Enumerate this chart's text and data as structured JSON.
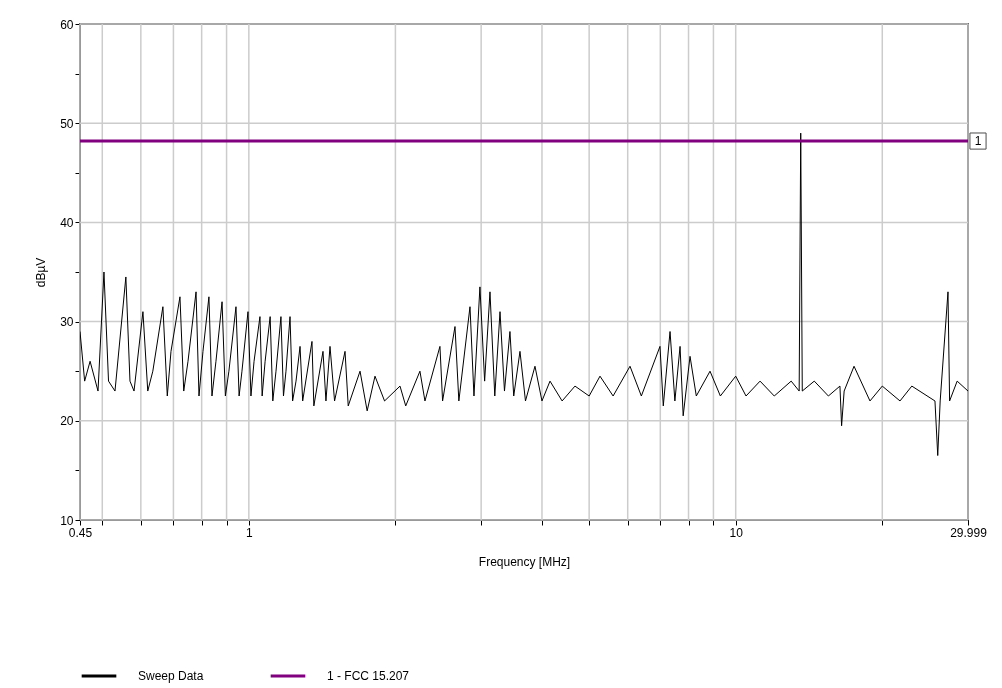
{
  "chart_data": {
    "type": "line",
    "xlabel": "Frequency [MHz]",
    "ylabel": "dBµV",
    "log": "x",
    "grid": true,
    "legend": "bottom",
    "xlim": [
      0.45,
      29.999
    ],
    "xticks": [
      0.45,
      {
        "value": 0.5,
        "label": null
      },
      {
        "value": 0.6,
        "label": null
      },
      {
        "value": 0.7,
        "label": null
      },
      {
        "value": 0.8,
        "label": null
      },
      {
        "value": 0.9,
        "label": null
      },
      1,
      {
        "value": 2,
        "label": null
      },
      {
        "value": 3,
        "label": null
      },
      {
        "value": 4,
        "label": null
      },
      {
        "value": 5,
        "label": null
      },
      {
        "value": 6,
        "label": null
      },
      {
        "value": 7,
        "label": null
      },
      {
        "value": 8,
        "label": null
      },
      {
        "value": 9,
        "label": null
      },
      10,
      {
        "value": 20,
        "label": null
      },
      29.999
    ],
    "ylim": [
      10,
      60
    ],
    "yticks": [
      10,
      {
        "value": 15,
        "label": null
      },
      20,
      {
        "value": 25,
        "label": null
      },
      30,
      {
        "value": 35,
        "label": null
      },
      40,
      {
        "value": 45,
        "label": null
      },
      50,
      {
        "value": 55,
        "label": null
      },
      60
    ],
    "series": [
      {
        "name": "Sweep Data",
        "color": "#000000",
        "x": [
          0.45,
          0.46,
          0.472,
          0.49,
          0.504,
          0.515,
          0.531,
          0.559,
          0.57,
          0.581,
          0.606,
          0.62,
          0.635,
          0.666,
          0.68,
          0.692,
          0.722,
          0.735,
          0.75,
          0.779,
          0.79,
          0.805,
          0.828,
          0.84,
          0.856,
          0.881,
          0.895,
          0.91,
          0.941,
          0.955,
          0.968,
          0.996,
          1.01,
          1.025,
          1.054,
          1.065,
          1.08,
          1.106,
          1.12,
          1.137,
          1.164,
          1.178,
          1.192,
          1.215,
          1.23,
          1.25,
          1.274,
          1.29,
          1.348,
          1.36,
          1.42,
          1.44,
          1.468,
          1.5,
          1.576,
          1.6,
          1.692,
          1.75,
          1.816,
          1.9,
          2.044,
          2.1,
          2.246,
          2.3,
          2.469,
          2.5,
          2.651,
          2.7,
          2.846,
          2.9,
          2.983,
          3.05,
          3.128,
          3.2,
          3.28,
          3.35,
          3.438,
          3.5,
          3.605,
          3.7,
          3.87,
          4.0,
          4.155,
          4.4,
          4.676,
          5.0,
          5.263,
          5.6,
          6.066,
          6.4,
          6.99,
          7.1,
          7.33,
          7.5,
          7.686,
          7.8,
          8.057,
          8.3,
          8.856,
          9.3,
          10.0,
          10.5,
          11.22,
          12,
          13.0,
          13.5,
          13.6,
          13.7,
          14.5,
          15.5,
          16.37,
          16.5,
          16.7,
          17.5,
          18.87,
          20,
          21.75,
          23,
          25.66,
          26.0,
          26.3,
          27.29,
          27.5,
          28.5,
          29.999
        ],
        "values": [
          29,
          24,
          26,
          23,
          35,
          24,
          23,
          34.5,
          24,
          23,
          31,
          23,
          25,
          31.5,
          22.5,
          27,
          32.5,
          23,
          26,
          33,
          22.5,
          27,
          32.5,
          22.5,
          26,
          32,
          22.5,
          25,
          31.5,
          22.5,
          25,
          31,
          22.5,
          26,
          30.5,
          22.5,
          26,
          30.5,
          22,
          25,
          30.5,
          22.5,
          25,
          30.5,
          22,
          24,
          27.5,
          22,
          28,
          21.5,
          27,
          22,
          27.5,
          22,
          27,
          21.5,
          25,
          21,
          24.5,
          22,
          23.5,
          21.5,
          25,
          22,
          27.5,
          22,
          29.5,
          22,
          31.5,
          22.5,
          33.5,
          24,
          33,
          22.5,
          31,
          23,
          29,
          22.5,
          27,
          22,
          25.5,
          22,
          24,
          22,
          23.5,
          22.5,
          24.5,
          22.5,
          25.5,
          22.5,
          27.5,
          21.5,
          29,
          22,
          27.5,
          20.5,
          26.5,
          22.5,
          25,
          22.5,
          24.5,
          22.5,
          24,
          22.5,
          24,
          23,
          49,
          23,
          24,
          22.5,
          23.5,
          19.5,
          23,
          25.5,
          22,
          23.5,
          22,
          23.5,
          22,
          16.5,
          22,
          33,
          22,
          24,
          23
        ]
      },
      {
        "name": "1 - FCC 15.207",
        "color": "#800080",
        "x": [
          0.45,
          29.999
        ],
        "values": [
          48.2,
          48.2
        ]
      }
    ],
    "annotations": [
      {
        "text": "1",
        "x": 29.999,
        "y": 48.2
      }
    ]
  }
}
